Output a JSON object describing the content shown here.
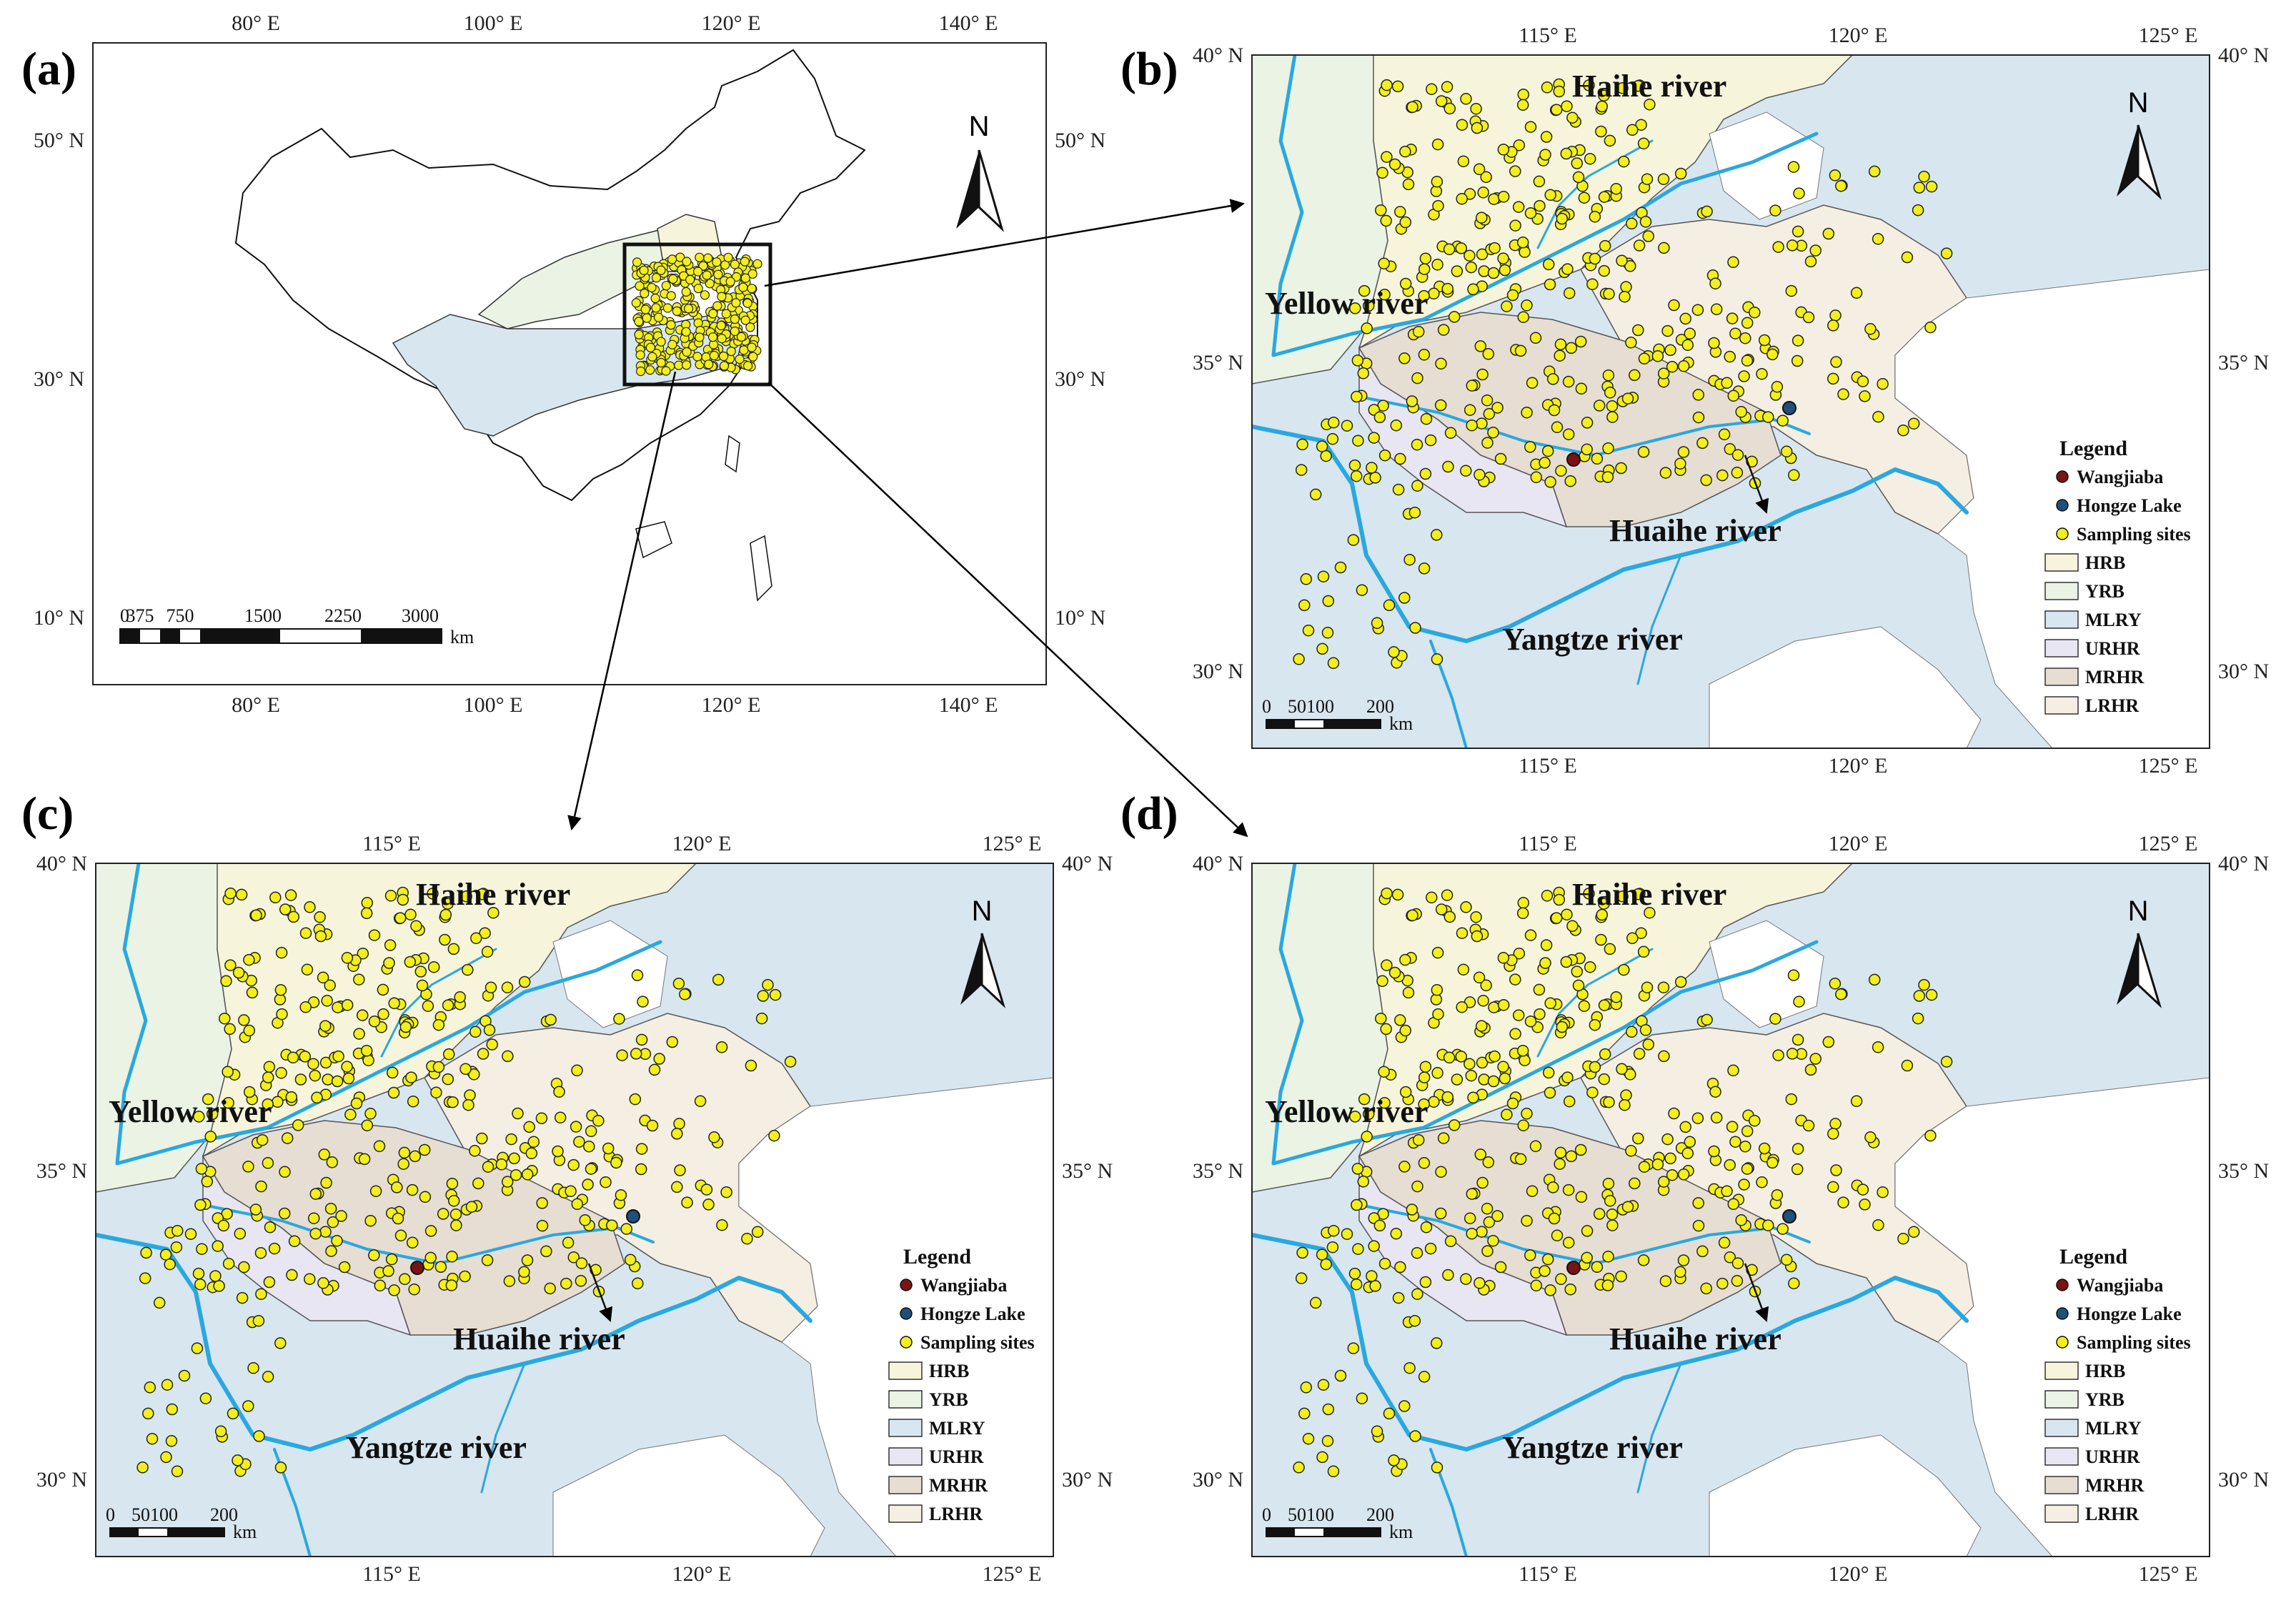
{
  "panels": {
    "a": {
      "label": "(a)",
      "x_ticks": [
        "80° E",
        "100° E",
        "120° E",
        "140° E"
      ],
      "y_ticks": [
        "50° N",
        "30° N",
        "10° N"
      ],
      "scale_numbers": [
        "0",
        "375",
        "750",
        "1500",
        "2250",
        "3000"
      ],
      "scale_unit": "km",
      "north": "N"
    },
    "b": {
      "label": "(b)",
      "x_ticks": [
        "115° E",
        "120° E",
        "125° E"
      ],
      "y_ticks": [
        "40° N",
        "35° N",
        "30° N"
      ],
      "north": "N",
      "scale_numbers": [
        "0",
        "50100",
        "200"
      ],
      "scale_unit": "km"
    },
    "c": {
      "label": "(c)",
      "x_ticks": [
        "115° E",
        "120° E",
        "125° E"
      ],
      "y_ticks": [
        "40° N",
        "35° N",
        "30° N"
      ],
      "north": "N",
      "scale_numbers": [
        "0",
        "50100",
        "200"
      ],
      "scale_unit": "km"
    },
    "d": {
      "label": "(d)",
      "x_ticks": [
        "115° E",
        "120° E",
        "125° E"
      ],
      "y_ticks": [
        "40° N",
        "35° N",
        "30° N"
      ],
      "north": "N",
      "scale_numbers": [
        "0",
        "50100",
        "200"
      ],
      "scale_unit": "km"
    }
  },
  "rivers": {
    "haihe": "Haihe river",
    "yellow": "Yellow river",
    "huaihe": "Huaihe river",
    "yangtze": "Yangtze river"
  },
  "legend": {
    "title": "Legend",
    "items": [
      {
        "label": "Wangjiaba",
        "symbol": "circle",
        "color": "#7a1414"
      },
      {
        "label": "Hongze Lake",
        "symbol": "circle",
        "color": "#1f4f7a"
      },
      {
        "label": "Sampling sites",
        "symbol": "circle",
        "color": "#f2ef1a"
      },
      {
        "label": "HRB",
        "symbol": "box",
        "color": "#f7f4dc"
      },
      {
        "label": "YRB",
        "symbol": "box",
        "color": "#eaf3e4"
      },
      {
        "label": "MLRY",
        "symbol": "box",
        "color": "#d8e6f0"
      },
      {
        "label": "URHR",
        "symbol": "box",
        "color": "#e8e6f2"
      },
      {
        "label": "MRHR",
        "symbol": "box",
        "color": "#e6ddd3"
      },
      {
        "label": "LRHR",
        "symbol": "box",
        "color": "#f5eee2"
      }
    ]
  },
  "colors": {
    "river": "#29a8e0",
    "site": "#f2ef1a",
    "hrb": "#f7f4dc",
    "yrb": "#eaf3e4",
    "mlry": "#d8e6f0",
    "urhr": "#e8e6f2",
    "mrhr": "#e6ddd3",
    "lrhr": "#f5eee2"
  }
}
